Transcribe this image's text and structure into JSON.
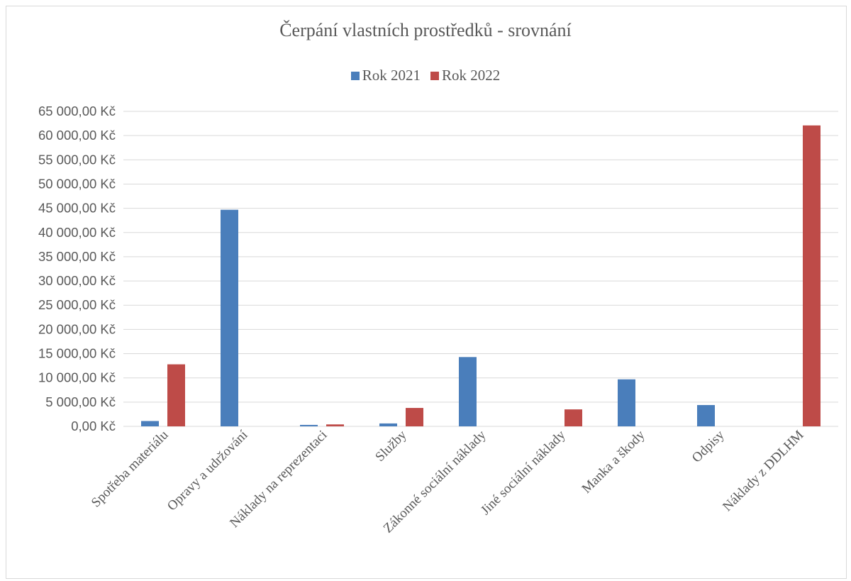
{
  "chart_data": {
    "type": "bar",
    "title": "Čerpání vlastních prostředků - srovnání",
    "categories": [
      "Spotřeba materiálu",
      "Opravy a udržování",
      "Náklady na reprezentaci",
      "Služby",
      "Zákonné sociální náklady",
      "Jiné sociální náklady",
      "Manka a škody",
      "Odpisy",
      "Náklady z DDLHM"
    ],
    "series": [
      {
        "name": "Rok 2021",
        "color": "#4a7ebb",
        "values": [
          1100,
          44700,
          300,
          600,
          14300,
          0,
          9700,
          4400,
          0
        ]
      },
      {
        "name": "Rok 2022",
        "color": "#be4b48",
        "values": [
          12800,
          0,
          400,
          3800,
          0,
          3500,
          0,
          0,
          62100
        ]
      }
    ],
    "ylim": [
      0,
      65000
    ],
    "ytick_step": 5000,
    "ytick_labels": [
      "0,00 Kč",
      "5 000,00 Kč",
      "10 000,00 Kč",
      "15 000,00 Kč",
      "20 000,00 Kč",
      "25 000,00 Kč",
      "30 000,00 Kč",
      "35 000,00 Kč",
      "40 000,00 Kč",
      "45 000,00 Kč",
      "50 000,00 Kč",
      "55 000,00 Kč",
      "60 000,00 Kč",
      "65 000,00 Kč"
    ],
    "grid": true,
    "legend_position": "top",
    "gridline_color": "#d9d9d9",
    "text_color": "#595959"
  }
}
